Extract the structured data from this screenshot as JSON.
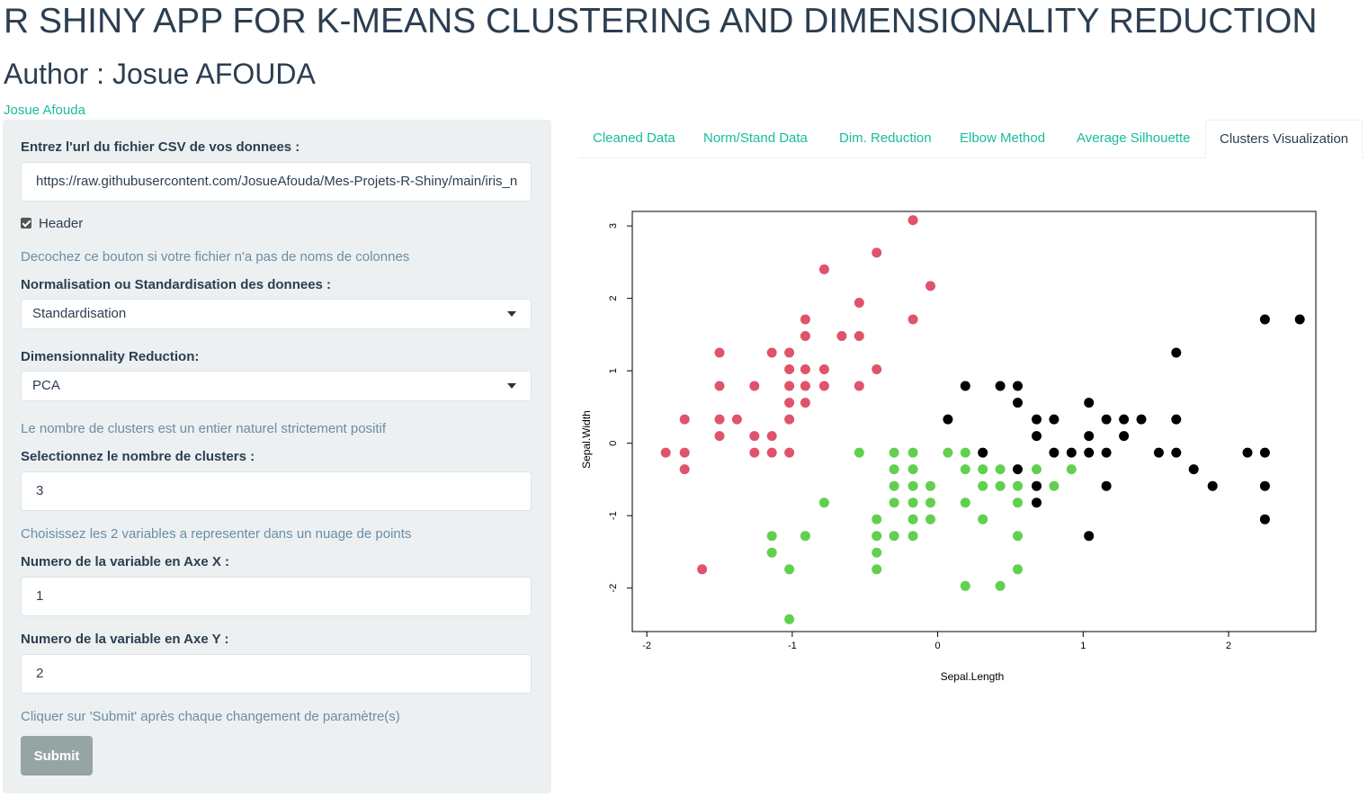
{
  "header": {
    "title": "R SHINY APP FOR K-MEANS CLUSTERING AND DIMENSIONALITY REDUCTION",
    "author": "Author : Josue AFOUDA",
    "author_link": "Josue Afouda"
  },
  "sidebar": {
    "url_label": "Entrez l'url du fichier CSV de vos donnees :",
    "url_value": "https://raw.githubusercontent.com/JosueAfouda/Mes-Projets-R-Shiny/main/iris_n",
    "header_checkbox_label": "Header",
    "header_help": "Decochez ce bouton si votre fichier n'a pas de noms de colonnes",
    "norm_label": "Normalisation ou Standardisation des donnees :",
    "norm_value": "Standardisation",
    "dimred_label": "Dimensionnality Reduction:",
    "dimred_value": "PCA",
    "clusters_help": "Le nombre de clusters est un entier naturel strictement positif",
    "clusters_label": "Selectionnez le nombre de clusters :",
    "clusters_value": "3",
    "vars_help": "Choisissez les 2 variables a representer dans un nuage de points",
    "x_label": "Numero de la variable en Axe X :",
    "x_value": "1",
    "y_label": "Numero de la variable en Axe Y :",
    "y_value": "2",
    "submit_help": "Cliquer sur 'Submit' après chaque changement de paramètre(s)",
    "submit_label": "Submit"
  },
  "tabs": [
    "Cleaned Data",
    "Norm/Stand Data",
    "Dim. Reduction",
    "Elbow Method",
    "Average Silhouette",
    "Clusters Visualization"
  ],
  "chart_data": {
    "type": "scatter",
    "xlabel": "Sepal.Length",
    "ylabel": "Sepal.Width",
    "xlim": [
      -2.1,
      2.6
    ],
    "ylim": [
      -2.6,
      3.2
    ],
    "xticks": [
      -2,
      -1,
      0,
      1,
      2
    ],
    "yticks": [
      -2,
      -1,
      0,
      1,
      2,
      3
    ],
    "grid": false,
    "legend": "none",
    "series": [
      {
        "color": "#df536b",
        "points": [
          [
            -0.17,
            3.08
          ],
          [
            -0.42,
            2.63
          ],
          [
            -0.05,
            2.17
          ],
          [
            -0.78,
            2.4
          ],
          [
            -0.54,
            1.94
          ],
          [
            -0.91,
            1.71
          ],
          [
            -0.17,
            1.71
          ],
          [
            -0.66,
            1.48
          ],
          [
            -0.54,
            1.48
          ],
          [
            -0.91,
            1.48
          ],
          [
            -1.5,
            1.25
          ],
          [
            -1.14,
            1.25
          ],
          [
            -1.02,
            1.25
          ],
          [
            -1.02,
            1.02
          ],
          [
            -0.91,
            1.02
          ],
          [
            -0.78,
            1.02
          ],
          [
            -0.42,
            1.02
          ],
          [
            -1.5,
            0.79
          ],
          [
            -1.26,
            0.79
          ],
          [
            -1.02,
            0.79
          ],
          [
            -0.91,
            0.79
          ],
          [
            -0.78,
            0.79
          ],
          [
            -0.54,
            0.79
          ],
          [
            -1.02,
            0.56
          ],
          [
            -0.91,
            0.56
          ],
          [
            -1.74,
            0.33
          ],
          [
            -1.5,
            0.33
          ],
          [
            -1.38,
            0.33
          ],
          [
            -1.02,
            0.33
          ],
          [
            -1.5,
            0.1
          ],
          [
            -1.26,
            0.1
          ],
          [
            -1.14,
            0.1
          ],
          [
            -1.87,
            -0.13
          ],
          [
            -1.74,
            -0.13
          ],
          [
            -1.26,
            -0.13
          ],
          [
            -1.14,
            -0.13
          ],
          [
            -1.02,
            -0.13
          ],
          [
            -1.74,
            -0.36
          ],
          [
            -1.62,
            -1.74
          ]
        ]
      },
      {
        "color": "#61d04f",
        "points": [
          [
            -0.54,
            -0.13
          ],
          [
            -0.3,
            -0.13
          ],
          [
            -0.17,
            -0.13
          ],
          [
            0.07,
            -0.13
          ],
          [
            0.19,
            -0.13
          ],
          [
            -0.3,
            -0.36
          ],
          [
            -0.17,
            -0.36
          ],
          [
            0.19,
            -0.36
          ],
          [
            0.31,
            -0.36
          ],
          [
            0.43,
            -0.36
          ],
          [
            0.68,
            -0.36
          ],
          [
            0.92,
            -0.36
          ],
          [
            -0.3,
            -0.59
          ],
          [
            -0.17,
            -0.59
          ],
          [
            -0.05,
            -0.59
          ],
          [
            0.31,
            -0.59
          ],
          [
            0.43,
            -0.59
          ],
          [
            0.55,
            -0.59
          ],
          [
            0.8,
            -0.59
          ],
          [
            -0.3,
            -0.82
          ],
          [
            -0.17,
            -0.82
          ],
          [
            -0.05,
            -0.82
          ],
          [
            0.19,
            -0.82
          ],
          [
            0.55,
            -0.82
          ],
          [
            -0.78,
            -0.82
          ],
          [
            -0.42,
            -1.05
          ],
          [
            -0.17,
            -1.05
          ],
          [
            -0.05,
            -1.05
          ],
          [
            0.31,
            -1.05
          ],
          [
            -0.42,
            -1.28
          ],
          [
            -0.3,
            -1.28
          ],
          [
            -0.17,
            -1.28
          ],
          [
            0.55,
            -1.28
          ],
          [
            -1.14,
            -1.28
          ],
          [
            -0.91,
            -1.28
          ],
          [
            -1.14,
            -1.51
          ],
          [
            -0.42,
            -1.51
          ],
          [
            -1.02,
            -1.74
          ],
          [
            -0.42,
            -1.74
          ],
          [
            0.55,
            -1.74
          ],
          [
            0.19,
            -1.97
          ],
          [
            0.43,
            -1.97
          ],
          [
            -1.02,
            -2.43
          ]
        ]
      },
      {
        "color": "#000000",
        "points": [
          [
            2.25,
            1.71
          ],
          [
            2.49,
            1.71
          ],
          [
            1.64,
            1.25
          ],
          [
            0.19,
            0.79
          ],
          [
            0.43,
            0.79
          ],
          [
            0.55,
            0.79
          ],
          [
            0.55,
            0.56
          ],
          [
            1.04,
            0.56
          ],
          [
            0.07,
            0.33
          ],
          [
            0.68,
            0.33
          ],
          [
            0.8,
            0.33
          ],
          [
            1.16,
            0.33
          ],
          [
            1.28,
            0.33
          ],
          [
            1.4,
            0.33
          ],
          [
            1.64,
            0.33
          ],
          [
            0.68,
            0.1
          ],
          [
            1.04,
            0.1
          ],
          [
            1.28,
            0.1
          ],
          [
            0.31,
            -0.13
          ],
          [
            0.8,
            -0.13
          ],
          [
            0.92,
            -0.13
          ],
          [
            1.04,
            -0.13
          ],
          [
            1.16,
            -0.13
          ],
          [
            1.52,
            -0.13
          ],
          [
            1.64,
            -0.13
          ],
          [
            2.13,
            -0.13
          ],
          [
            2.25,
            -0.13
          ],
          [
            0.55,
            -0.36
          ],
          [
            1.76,
            -0.36
          ],
          [
            0.68,
            -0.59
          ],
          [
            1.16,
            -0.59
          ],
          [
            1.89,
            -0.59
          ],
          [
            2.25,
            -0.59
          ],
          [
            0.68,
            -0.82
          ],
          [
            2.25,
            -1.05
          ],
          [
            1.04,
            -1.28
          ]
        ]
      }
    ]
  }
}
